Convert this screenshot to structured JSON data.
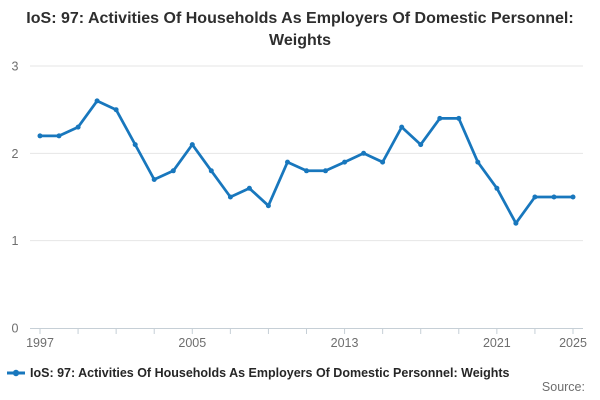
{
  "header": {
    "title": "IoS: 97: Activities Of Households As Employers Of Domestic Personnel: Weights"
  },
  "legend": {
    "label": "IoS: 97: Activities Of Households As Employers Of Domestic Personnel: Weights",
    "marker": "line-with-dot-icon"
  },
  "source": {
    "label": "Source:"
  },
  "colors": {
    "line": "#1877bd",
    "marker": "#1877bd",
    "grid": "#e6e6e6",
    "axis": "#c6cfd6",
    "tick_label": "#6e6e6e",
    "title_text": "#2e2e2e",
    "legend_text": "#262626",
    "background": "#ffffff"
  },
  "chart_data": {
    "type": "line",
    "title": "IoS: 97: Activities Of Households As Employers Of Domestic Personnel: Weights",
    "xlabel": "",
    "ylabel": "",
    "x": [
      1997,
      1998,
      1999,
      2000,
      2001,
      2002,
      2003,
      2004,
      2005,
      2006,
      2007,
      2008,
      2009,
      2010,
      2011,
      2012,
      2013,
      2014,
      2015,
      2016,
      2017,
      2018,
      2019,
      2020,
      2021,
      2022,
      2023,
      2024,
      2025
    ],
    "values": [
      2.2,
      2.2,
      2.3,
      2.6,
      2.5,
      2.1,
      1.7,
      1.8,
      2.1,
      1.8,
      1.5,
      1.6,
      1.4,
      1.9,
      1.8,
      1.8,
      1.9,
      2.0,
      1.9,
      2.3,
      2.1,
      2.4,
      2.4,
      1.9,
      1.6,
      1.2,
      1.5,
      1.5,
      1.5
    ],
    "ylim": [
      0,
      3
    ],
    "yticks": [
      0,
      1,
      2,
      3
    ],
    "xtick_interval": 2,
    "xticks_labeled": [
      1997,
      2005,
      2013,
      2021,
      2025
    ],
    "grid": "horizontal",
    "legend_position": "bottom-left",
    "markers": true
  }
}
